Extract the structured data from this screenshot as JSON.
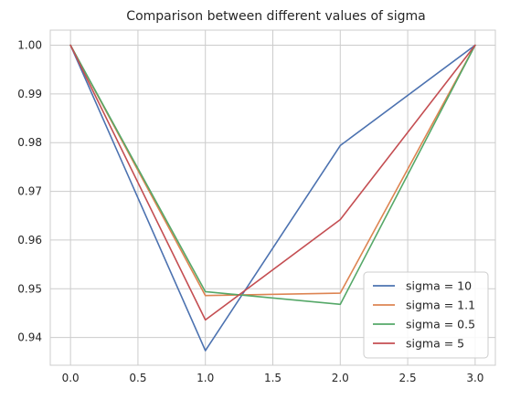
{
  "chart_data": {
    "type": "line",
    "title": "Comparison between different values of sigma",
    "xlabel": "",
    "ylabel": "",
    "x": [
      0,
      1,
      2,
      3
    ],
    "xlim": [
      -0.15,
      3.15
    ],
    "ylim": [
      0.9343,
      1.0031
    ],
    "xticks": [
      0,
      0.5,
      1,
      1.5,
      2,
      2.5,
      3
    ],
    "xtick_labels": [
      "0.0",
      "0.5",
      "1.0",
      "1.5",
      "2.0",
      "2.5",
      "3.0"
    ],
    "yticks": [
      0.94,
      0.95,
      0.96,
      0.97,
      0.98,
      0.99,
      1.0
    ],
    "ytick_labels": [
      "0.94",
      "0.95",
      "0.96",
      "0.97",
      "0.98",
      "0.99",
      "1.00"
    ],
    "grid": true,
    "legend_position": "bottom-right",
    "series": [
      {
        "name": "sigma = 10",
        "color": "#4c72b0",
        "values": [
          1.0,
          0.9373,
          0.9794,
          1.0
        ]
      },
      {
        "name": "sigma = 1.1",
        "color": "#dd8452",
        "values": [
          1.0,
          0.9486,
          0.9491,
          1.0
        ]
      },
      {
        "name": "sigma = 0.5",
        "color": "#55a868",
        "values": [
          1.0,
          0.9494,
          0.9468,
          1.0
        ]
      },
      {
        "name": "sigma = 5",
        "color": "#c44e52",
        "values": [
          1.0,
          0.9436,
          0.9642,
          1.0
        ]
      }
    ]
  }
}
